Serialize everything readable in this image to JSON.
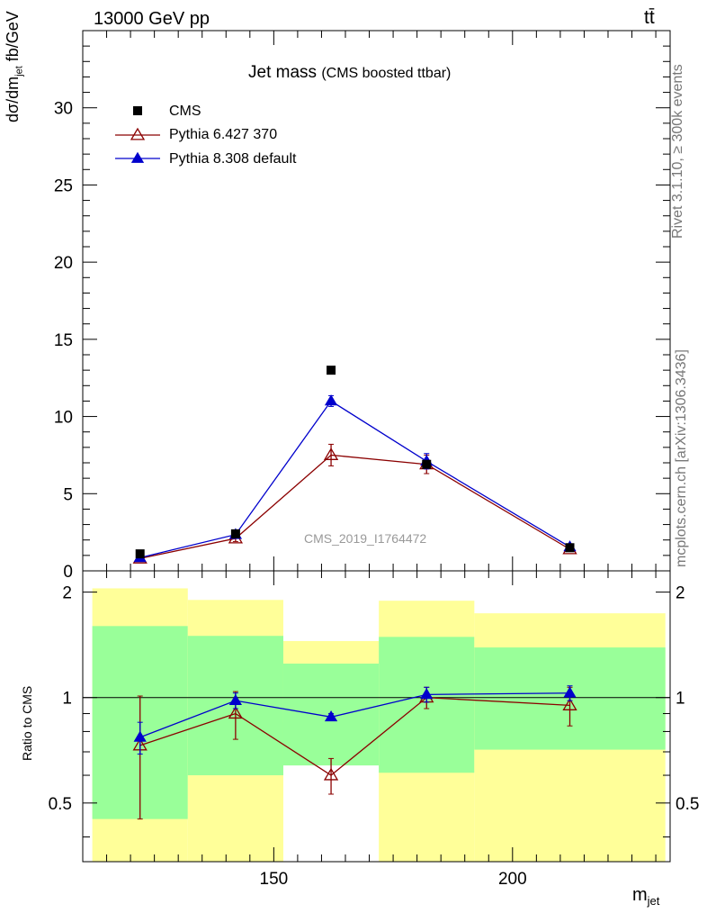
{
  "header": {
    "energy_label": "13000 GeV pp",
    "process_label": "tt̄"
  },
  "side_labels": {
    "rivet": "Rivet 3.1.10, ≥ 300k events",
    "mcplots": "mcplots.cern.ch [arXiv:1306.3436]"
  },
  "chart_data": [
    {
      "type": "scatter",
      "title": "Jet mass",
      "subtitle": "(CMS boosted ttbar)",
      "analysis_label": "CMS_2019_I1764472",
      "ylabel": "dσ/dm_jet  fb/GeV",
      "xlabel": "m_jet",
      "xlim": [
        110,
        233
      ],
      "ylim": [
        0,
        35
      ],
      "yticks": [
        0,
        5,
        10,
        15,
        20,
        25,
        30
      ],
      "xticks": [
        150,
        200
      ],
      "legend_position": "top-left",
      "series": [
        {
          "name": "CMS",
          "color": "#000000",
          "marker": "square",
          "x": [
            122,
            142,
            162,
            182,
            212
          ],
          "y": [
            1.1,
            2.4,
            13.0,
            6.9,
            1.5
          ]
        },
        {
          "name": "Pythia 6.427 370",
          "color": "#8b0000",
          "marker": "open-triangle",
          "x": [
            122,
            142,
            162,
            182,
            212
          ],
          "y": [
            0.8,
            2.1,
            7.5,
            6.9,
            1.4
          ],
          "err": [
            0.05,
            0.2,
            0.7,
            0.6,
            0.1
          ]
        },
        {
          "name": "Pythia 8.308 default",
          "color": "#0000cc",
          "marker": "filled-triangle",
          "x": [
            122,
            142,
            162,
            182,
            212
          ],
          "y": [
            0.85,
            2.35,
            11.0,
            7.1,
            1.55
          ],
          "err": [
            0.05,
            0.1,
            0.35,
            0.5,
            0.1
          ]
        }
      ]
    },
    {
      "type": "scatter",
      "ylabel": "Ratio to CMS",
      "xlabel": "m_jet",
      "xlim": [
        110,
        233
      ],
      "ylim": [
        0.34,
        2.3
      ],
      "yticks": [
        0.5,
        1,
        2
      ],
      "xticks": [
        150,
        200
      ],
      "bands": [
        {
          "x0": 112,
          "x1": 132,
          "g_lo": 0.45,
          "g_hi": 1.6,
          "y_lo": 0.34,
          "y_hi": 2.05
        },
        {
          "x0": 132,
          "x1": 152,
          "g_lo": 0.6,
          "g_hi": 1.5,
          "y_lo": 0.34,
          "y_hi": 1.9
        },
        {
          "x0": 152,
          "x1": 172,
          "g_lo": 0.64,
          "g_hi": 1.25,
          "y_lo": 0.85,
          "y_hi": 1.45
        },
        {
          "x0": 172,
          "x1": 192,
          "g_lo": 0.61,
          "g_hi": 1.49,
          "y_lo": 0.34,
          "y_hi": 1.89
        },
        {
          "x0": 192,
          "x1": 232,
          "g_lo": 0.71,
          "g_hi": 1.39,
          "y_lo": 0.34,
          "y_hi": 1.74
        }
      ],
      "series": [
        {
          "name": "Pythia 6.427 370",
          "color": "#8b0000",
          "marker": "open-triangle",
          "x": [
            122,
            142,
            162,
            182,
            212
          ],
          "y": [
            0.73,
            0.9,
            0.6,
            1.0,
            0.95
          ],
          "err": [
            0.28,
            0.14,
            0.07,
            0.07,
            0.12
          ]
        },
        {
          "name": "Pythia 8.308 default",
          "color": "#0000cc",
          "marker": "filled-triangle",
          "x": [
            122,
            142,
            162,
            182,
            212
          ],
          "y": [
            0.77,
            0.98,
            0.88,
            1.02,
            1.03
          ],
          "err": [
            0.08,
            0.05,
            0.02,
            0.05,
            0.05
          ]
        }
      ]
    }
  ]
}
